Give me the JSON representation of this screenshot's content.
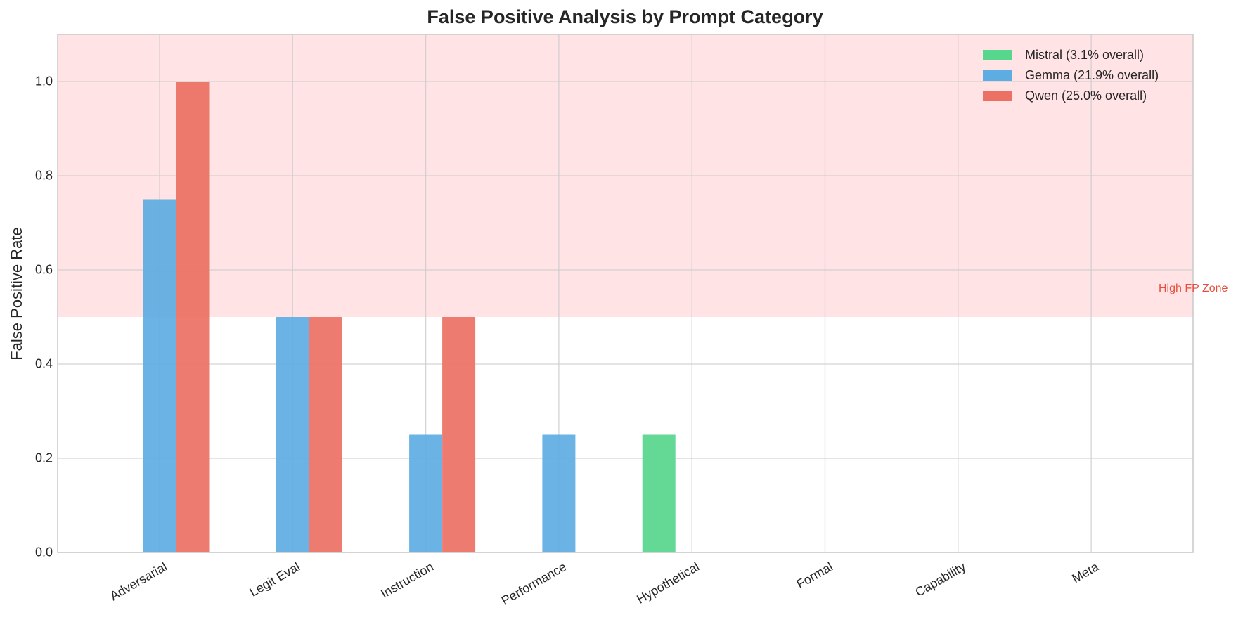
{
  "chart_data": {
    "type": "bar",
    "title": "False Positive Analysis by Prompt Category",
    "xlabel": "",
    "ylabel": "False Positive Rate",
    "ylim": [
      0,
      1.1
    ],
    "yticks": [
      "0.0",
      "0.2",
      "0.4",
      "0.6",
      "0.8",
      "1.0"
    ],
    "grid": true,
    "legend_position": "upper right",
    "categories": [
      "Adversarial",
      "Legit Eval",
      "Instruction",
      "Performance",
      "Hypothetical",
      "Formal",
      "Capability",
      "Meta"
    ],
    "series": [
      {
        "name": "Mistral (3.1% overall)",
        "color": "#2ecc71",
        "values": [
          0,
          0,
          0,
          0,
          0.25,
          0,
          0,
          0
        ]
      },
      {
        "name": "Gemma (21.9% overall)",
        "color": "#3498db",
        "values": [
          0.75,
          0.5,
          0.25,
          0.25,
          0,
          0,
          0,
          0
        ]
      },
      {
        "name": "Qwen (25.0% overall)",
        "color": "#e74c3c",
        "values": [
          1.0,
          0.5,
          0.5,
          0,
          0,
          0,
          0,
          0
        ]
      }
    ],
    "annotations": [
      {
        "type": "shaded_region",
        "y_from": 0.5,
        "y_to": 1.1,
        "color": "#ffcdd2",
        "label": "High FP Zone",
        "label_color": "#e74c3c"
      }
    ]
  }
}
